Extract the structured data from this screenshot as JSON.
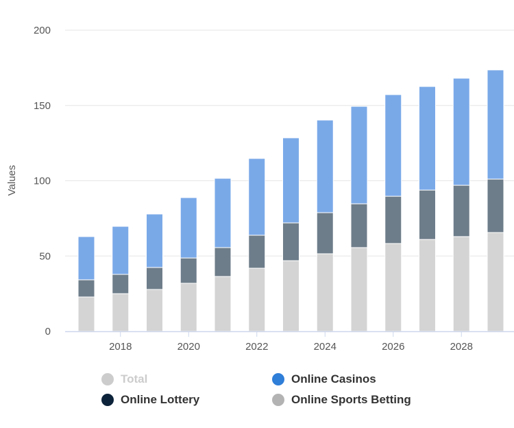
{
  "chart_data": {
    "type": "bar",
    "stacked": true,
    "x": [
      2017,
      2018,
      2019,
      2020,
      2021,
      2022,
      2023,
      2024,
      2025,
      2026,
      2027,
      2028,
      2029
    ],
    "xticks": [
      "2018",
      "2020",
      "2022",
      "2024",
      "2026",
      "2028"
    ],
    "ylabel": "Values",
    "ylim": [
      0,
      200
    ],
    "yticks": [
      "0",
      "50",
      "100",
      "150",
      "200"
    ],
    "grid": true,
    "legend_position": "bottom",
    "series": [
      {
        "name": "Online Sports Betting",
        "color": "#d4d4d4",
        "legend_color": "#b3b3b3",
        "values": [
          22.8,
          25.0,
          27.8,
          31.9,
          36.4,
          41.9,
          46.9,
          51.5,
          55.6,
          58.3,
          61.0,
          62.9,
          65.6
        ]
      },
      {
        "name": "Online Lottery",
        "color": "#6e7d8a",
        "legend_color": "#0d233a",
        "values": [
          11.4,
          12.8,
          14.6,
          16.8,
          19.2,
          21.9,
          25.1,
          27.3,
          29.1,
          31.4,
          32.8,
          34.1,
          35.5
        ]
      },
      {
        "name": "Online Casinos",
        "color": "#7aa9e8",
        "legend_color": "#2f7ed8",
        "values": [
          28.7,
          31.9,
          35.5,
          40.1,
          46.0,
          51.0,
          56.5,
          61.5,
          64.7,
          67.5,
          68.8,
          71.1,
          72.5
        ]
      }
    ],
    "legend": [
      {
        "name": "Total",
        "color": "#cccccc",
        "hidden": true
      },
      {
        "name": "Online Casinos",
        "color": "#2f7ed8",
        "hidden": false
      },
      {
        "name": "Online Lottery",
        "color": "#0d233a",
        "hidden": false
      },
      {
        "name": "Online Sports Betting",
        "color": "#b3b3b3",
        "hidden": false
      }
    ]
  }
}
